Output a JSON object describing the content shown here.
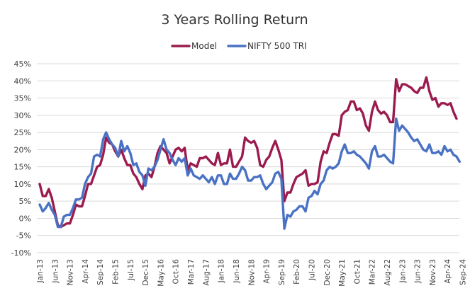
{
  "chart_data": {
    "type": "line",
    "title": "3 Years Rolling Return",
    "legend_position": "top",
    "grid": "horizontal",
    "ylim": [
      -0.1,
      0.45
    ],
    "y_ticks": [
      {
        "value": 0.45,
        "label": "45%"
      },
      {
        "value": 0.4,
        "label": "40%"
      },
      {
        "value": 0.35,
        "label": "35%"
      },
      {
        "value": 0.3,
        "label": "30%"
      },
      {
        "value": 0.25,
        "label": "25%"
      },
      {
        "value": 0.2,
        "label": "20%"
      },
      {
        "value": 0.15,
        "label": "15%"
      },
      {
        "value": 0.1,
        "label": "10%"
      },
      {
        "value": 0.05,
        "label": "5%"
      },
      {
        "value": 0.0,
        "label": "0%"
      },
      {
        "value": -0.05,
        "label": "-5%"
      },
      {
        "value": -0.1,
        "label": "-10%"
      }
    ],
    "x_tick_labels": [
      "Jan-13",
      "Jun-13",
      "Nov-13",
      "Apr-14",
      "Sep-14",
      "Feb-15",
      "Jul-15",
      "Dec-15",
      "May-16",
      "Oct-16",
      "Mar-17",
      "Aug-17",
      "Jan-18",
      "Jun-18",
      "Nov-18",
      "Apr-19",
      "Sep-19",
      "Feb-20",
      "Jul-20",
      "Dec-20",
      "May-21",
      "Oct-21",
      "Mar-22",
      "Aug-22",
      "Jan-23",
      "Jun-23",
      "Nov-23",
      "Apr-24",
      "Sep-24"
    ],
    "x_start": "Jan-13",
    "x_end": "Sep-24",
    "series": [
      {
        "name": "Model",
        "color": "#9b1b4f",
        "values": [
          0.1,
          0.065,
          0.065,
          0.085,
          0.06,
          0.02,
          -0.02,
          -0.025,
          -0.02,
          -0.015,
          -0.015,
          0.01,
          0.04,
          0.035,
          0.035,
          0.065,
          0.1,
          0.1,
          0.125,
          0.15,
          0.155,
          0.185,
          0.235,
          0.22,
          0.215,
          0.195,
          0.18,
          0.2,
          0.175,
          0.155,
          0.155,
          0.13,
          0.12,
          0.1,
          0.085,
          0.125,
          0.13,
          0.12,
          0.15,
          0.19,
          0.21,
          0.2,
          0.19,
          0.16,
          0.18,
          0.2,
          0.205,
          0.195,
          0.205,
          0.14,
          0.16,
          0.155,
          0.15,
          0.175,
          0.175,
          0.18,
          0.17,
          0.16,
          0.155,
          0.19,
          0.155,
          0.16,
          0.16,
          0.2,
          0.15,
          0.15,
          0.165,
          0.18,
          0.235,
          0.225,
          0.22,
          0.225,
          0.205,
          0.155,
          0.15,
          0.17,
          0.18,
          0.205,
          0.225,
          0.2,
          0.17,
          0.05,
          0.075,
          0.075,
          0.1,
          0.12,
          0.125,
          0.13,
          0.14,
          0.095,
          0.1,
          0.1,
          0.105,
          0.165,
          0.195,
          0.19,
          0.22,
          0.245,
          0.245,
          0.24,
          0.3,
          0.31,
          0.315,
          0.34,
          0.34,
          0.315,
          0.32,
          0.305,
          0.27,
          0.255,
          0.31,
          0.34,
          0.315,
          0.305,
          0.31,
          0.3,
          0.28,
          0.28,
          0.405,
          0.37,
          0.39,
          0.39,
          0.385,
          0.38,
          0.37,
          0.365,
          0.38,
          0.38,
          0.41,
          0.37,
          0.345,
          0.35,
          0.325,
          0.335,
          0.335,
          0.33,
          0.335,
          0.31,
          0.29
        ]
      },
      {
        "name": "NIFTY 500 TRI",
        "color": "#4a72c4",
        "values": [
          0.04,
          0.02,
          0.03,
          0.045,
          0.025,
          0.01,
          -0.025,
          -0.025,
          0.005,
          0.01,
          0.01,
          0.03,
          0.055,
          0.055,
          0.06,
          0.1,
          0.12,
          0.13,
          0.18,
          0.185,
          0.18,
          0.23,
          0.25,
          0.23,
          0.215,
          0.205,
          0.18,
          0.225,
          0.195,
          0.21,
          0.19,
          0.155,
          0.16,
          0.135,
          0.125,
          0.095,
          0.145,
          0.14,
          0.15,
          0.17,
          0.2,
          0.23,
          0.2,
          0.19,
          0.17,
          0.155,
          0.175,
          0.165,
          0.175,
          0.125,
          0.145,
          0.125,
          0.12,
          0.115,
          0.125,
          0.115,
          0.105,
          0.12,
          0.1,
          0.125,
          0.125,
          0.1,
          0.1,
          0.13,
          0.115,
          0.115,
          0.13,
          0.15,
          0.14,
          0.11,
          0.11,
          0.12,
          0.12,
          0.125,
          0.1,
          0.085,
          0.095,
          0.105,
          0.13,
          0.135,
          0.115,
          -0.03,
          0.01,
          0.005,
          0.02,
          0.025,
          0.035,
          0.035,
          0.02,
          0.06,
          0.065,
          0.08,
          0.07,
          0.1,
          0.11,
          0.14,
          0.15,
          0.145,
          0.15,
          0.16,
          0.195,
          0.215,
          0.19,
          0.19,
          0.195,
          0.185,
          0.18,
          0.17,
          0.16,
          0.145,
          0.195,
          0.21,
          0.18,
          0.18,
          0.185,
          0.175,
          0.165,
          0.16,
          0.29,
          0.255,
          0.27,
          0.26,
          0.25,
          0.235,
          0.225,
          0.23,
          0.215,
          0.2,
          0.195,
          0.215,
          0.19,
          0.19,
          0.195,
          0.185,
          0.21,
          0.195,
          0.2,
          0.185,
          0.18,
          0.165
        ]
      }
    ]
  }
}
